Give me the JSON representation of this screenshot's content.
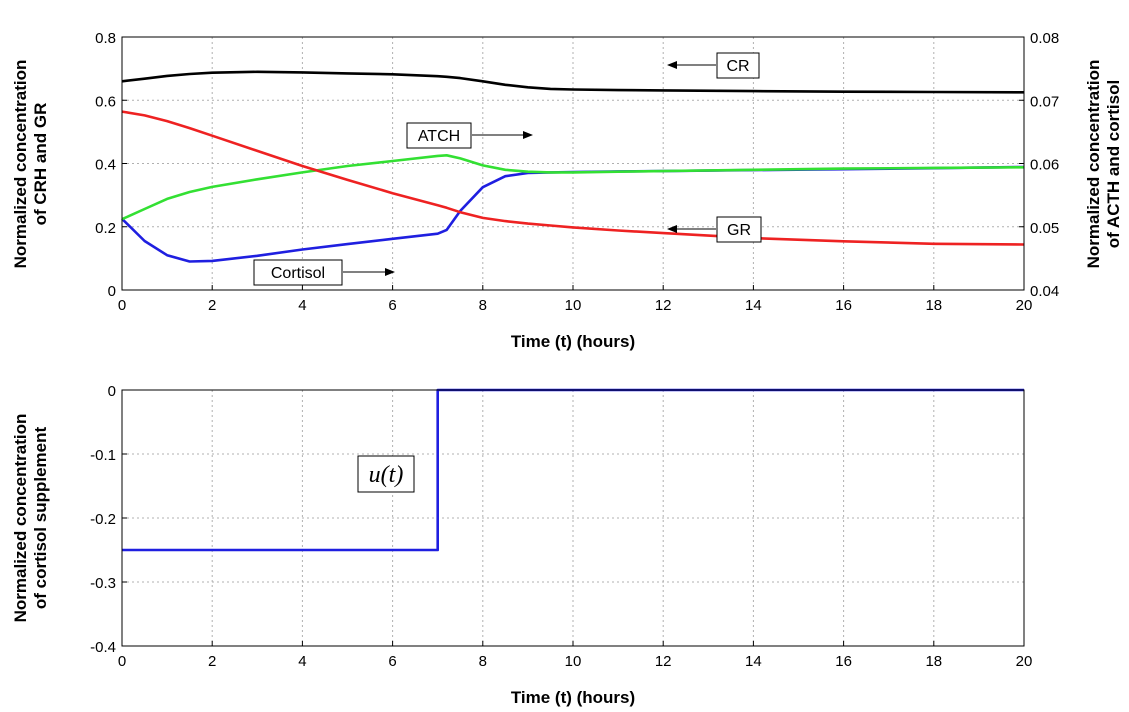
{
  "chart_data": [
    {
      "type": "line",
      "xlabel": "Time (t) (hours)",
      "ylabel": "Normalized concentration of CRH and GR",
      "y2label": "Normalized concentration of ACTH and cortisol",
      "xlim": [
        0,
        20
      ],
      "ylim": [
        0,
        0.8
      ],
      "y2lim": [
        0.04,
        0.08
      ],
      "xticks": [
        0,
        2,
        4,
        6,
        8,
        10,
        12,
        14,
        16,
        18,
        20
      ],
      "yticks": [
        0,
        0.2,
        0.4,
        0.6,
        0.8
      ],
      "y2ticks": [
        0.04,
        0.05,
        0.06,
        0.07,
        0.08
      ],
      "grid": true,
      "x": [
        0,
        0.5,
        1,
        1.5,
        2,
        3,
        4,
        5,
        6,
        7,
        7.2,
        7.5,
        8,
        8.5,
        9,
        9.5,
        10,
        11,
        12,
        14,
        16,
        18,
        20
      ],
      "series": [
        {
          "name": "CR",
          "color": "#000000",
          "axis": "left",
          "values": [
            0.66,
            0.668,
            0.677,
            0.683,
            0.687,
            0.69,
            0.688,
            0.685,
            0.682,
            0.676,
            0.674,
            0.67,
            0.66,
            0.649,
            0.641,
            0.636,
            0.634,
            0.632,
            0.631,
            0.629,
            0.627,
            0.626,
            0.625
          ]
        },
        {
          "name": "GR",
          "color": "#1f1fe0",
          "axis": "left",
          "values": [
            0.225,
            0.155,
            0.11,
            0.09,
            0.092,
            0.108,
            0.128,
            0.145,
            0.162,
            0.178,
            0.19,
            0.25,
            0.325,
            0.36,
            0.37,
            0.372,
            0.373,
            0.375,
            0.376,
            0.379,
            0.382,
            0.385,
            0.389
          ]
        },
        {
          "name": "ATCH",
          "color": "#33e033",
          "axis": "right",
          "values": [
            0.0512,
            0.0528,
            0.0544,
            0.0555,
            0.0563,
            0.0575,
            0.0586,
            0.0596,
            0.0604,
            0.0612,
            0.0613,
            0.0608,
            0.0597,
            0.059,
            0.0587,
            0.0586,
            0.0586,
            0.0587,
            0.0588,
            0.059,
            0.0592,
            0.0593,
            0.0594
          ]
        },
        {
          "name": "Cortisol",
          "color": "#ee2222",
          "axis": "right",
          "values": [
            0.0682,
            0.0676,
            0.0667,
            0.0656,
            0.0644,
            0.062,
            0.0596,
            0.0574,
            0.0553,
            0.0534,
            0.053,
            0.0523,
            0.0514,
            0.0509,
            0.0505,
            0.0502,
            0.0499,
            0.0494,
            0.049,
            0.0482,
            0.0477,
            0.0473,
            0.0472
          ]
        }
      ],
      "annotations": [
        "CR",
        "ATCH",
        "GR",
        "Cortisol"
      ]
    },
    {
      "type": "line",
      "xlabel": "Time (t) (hours)",
      "ylabel": "Normalized concentration of cortisol supplement",
      "xlim": [
        0,
        20
      ],
      "ylim": [
        -0.4,
        0
      ],
      "xticks": [
        0,
        2,
        4,
        6,
        8,
        10,
        12,
        14,
        16,
        18,
        20
      ],
      "yticks": [
        0,
        -0.1,
        -0.2,
        -0.3,
        -0.4
      ],
      "grid": true,
      "series": [
        {
          "name": "u(t)",
          "color": "#1f1fe0",
          "x": [
            0,
            7,
            7,
            20
          ],
          "values": [
            -0.25,
            -0.25,
            0,
            0
          ]
        }
      ],
      "annotations": [
        "u(t)"
      ]
    }
  ],
  "labels": {
    "top_ylabel_line1": "Normalized concentration",
    "top_ylabel_line2": "of CRH and GR",
    "top_y2label_line1": "Normalized concentration",
    "top_y2label_line2": "of ACTH and cortisol",
    "bottom_ylabel_line1": "Normalized concentration",
    "bottom_ylabel_line2": "of cortisol supplement",
    "top_xlabel": "Time (t) (hours)",
    "bottom_xlabel": "Time (t) (hours)",
    "anno_cr": "CR",
    "anno_atch": "ATCH",
    "anno_gr": "GR",
    "anno_cortisol": "Cortisol",
    "anno_u": "u(t)"
  }
}
